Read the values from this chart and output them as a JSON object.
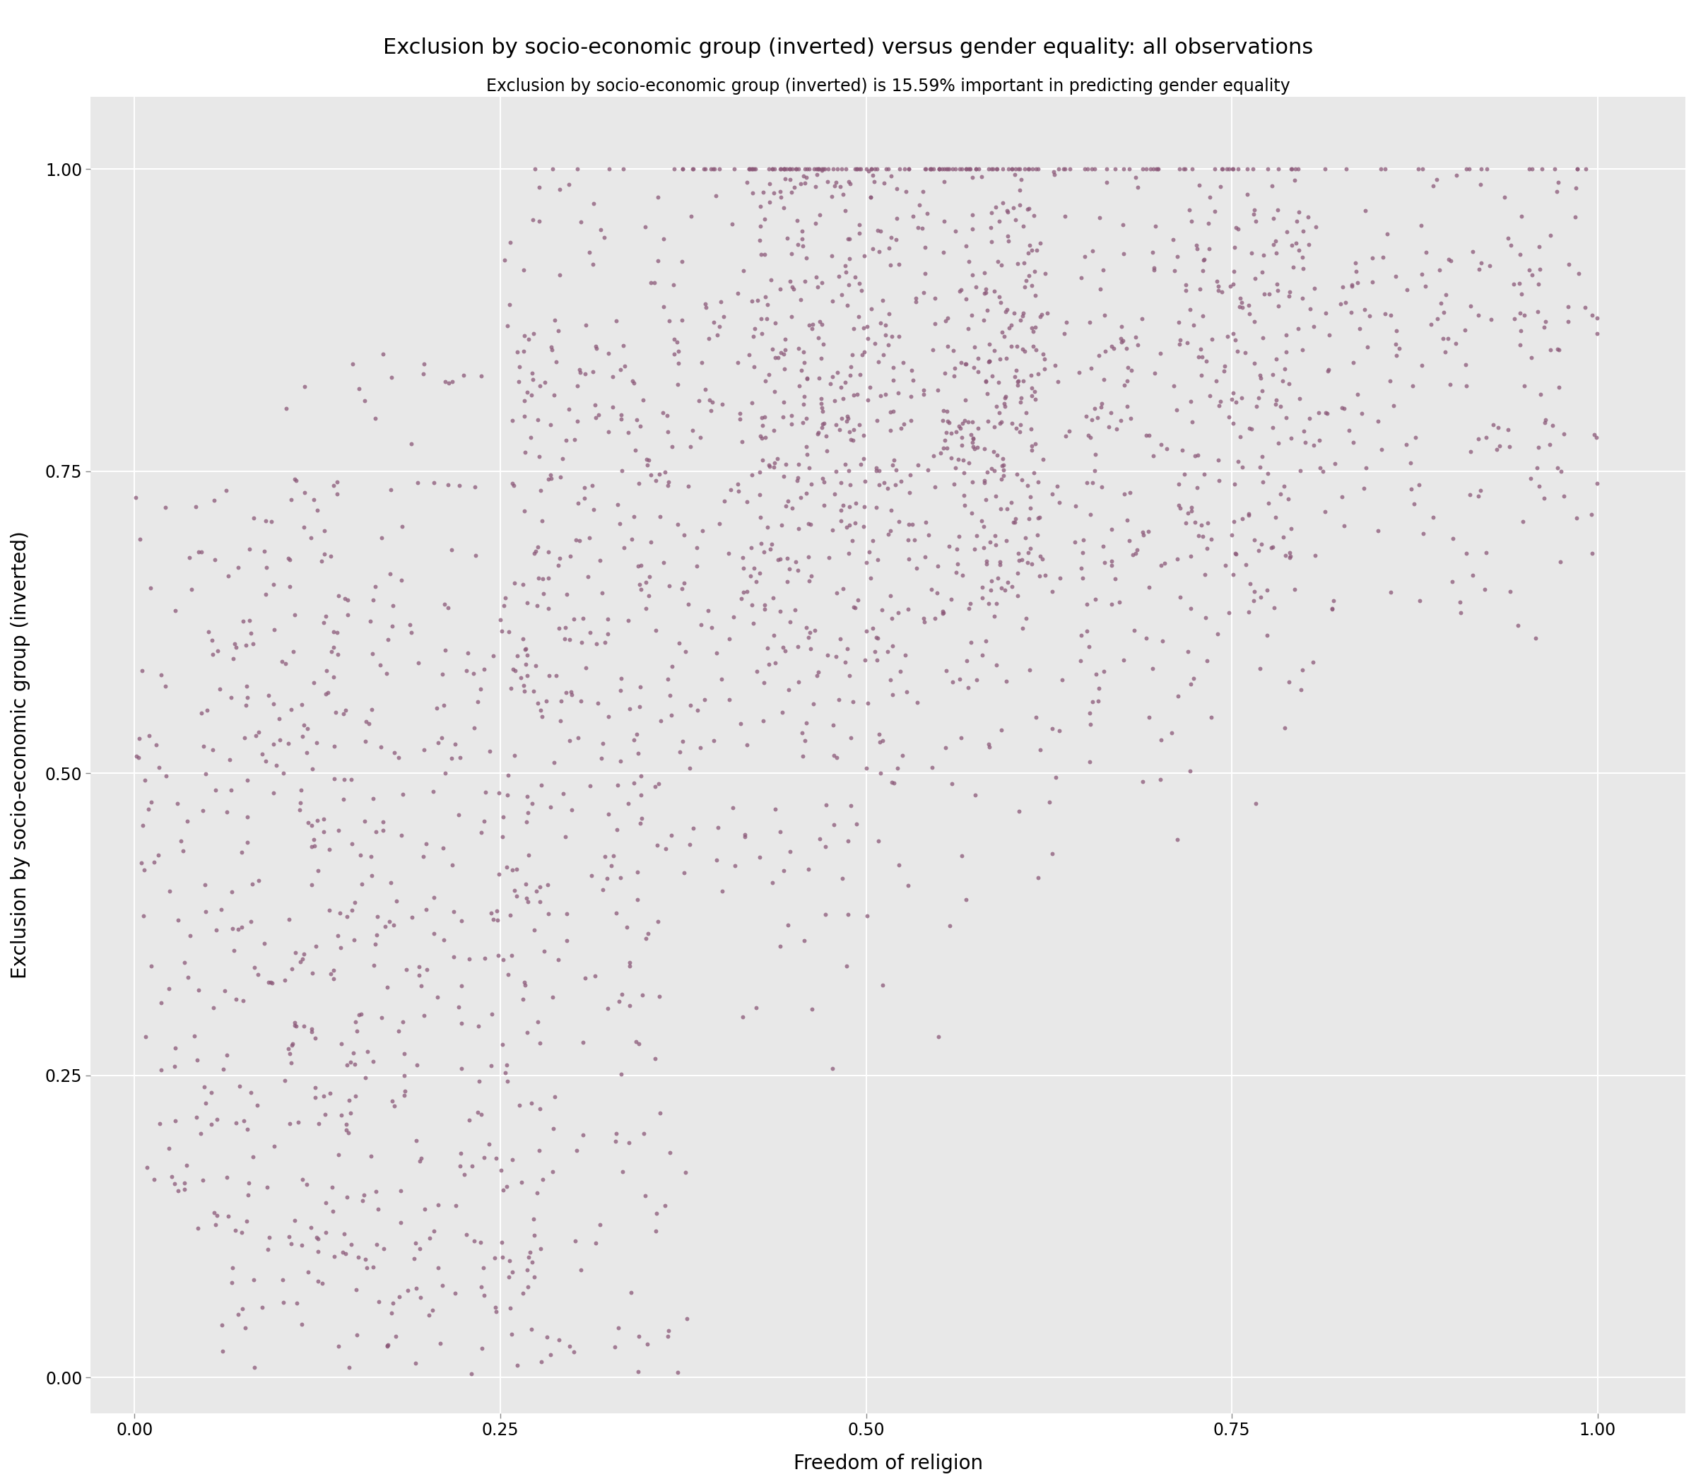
{
  "title": "Exclusion by socio-economic group (inverted) versus gender equality: all observations",
  "subtitle": "Exclusion by socio-economic group (inverted) is 15.59% important in predicting gender equality",
  "xlabel": "Freedom of religion",
  "ylabel": "Exclusion by socio-economic group (inverted)",
  "xlim": [
    -0.03,
    1.06
  ],
  "ylim": [
    -0.03,
    1.06
  ],
  "xticks": [
    0.0,
    0.25,
    0.5,
    0.75,
    1.0
  ],
  "yticks": [
    0.0,
    0.25,
    0.5,
    0.75,
    1.0
  ],
  "point_color": "#8B5878",
  "point_alpha": 0.75,
  "point_size": 18,
  "background_color": "#E8E8E8",
  "grid_color": "#FFFFFF",
  "title_fontsize": 22,
  "subtitle_fontsize": 17,
  "label_fontsize": 20,
  "tick_fontsize": 17,
  "seed": 42,
  "n_points": 2500
}
